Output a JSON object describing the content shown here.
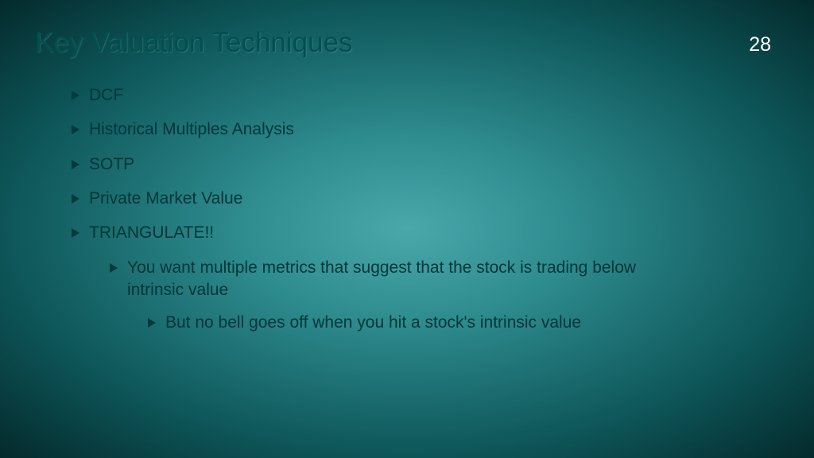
{
  "slide": {
    "title": "Key Valuation Techniques",
    "number": "28"
  },
  "bullets": {
    "item0": "DCF",
    "item1": "Historical Multiples Analysis",
    "item2": "SOTP",
    "item3": "Private Market Value",
    "item4": "TRIANGULATE!!",
    "item5": "You want multiple metrics that suggest that the stock is trading below intrinsic value",
    "item6": "But no bell goes off when you hit a stock's intrinsic value"
  },
  "colors": {
    "title_color": "#005050",
    "text_color": "#003638",
    "number_color": "#ffffff",
    "bullet_color": "#003a3c",
    "bg_center": "#4aa8ab",
    "bg_outer": "#042a2c"
  },
  "typography": {
    "title_fontsize": 35,
    "body_fontsize": 21,
    "number_fontsize": 25,
    "font_family": "Verdana"
  }
}
